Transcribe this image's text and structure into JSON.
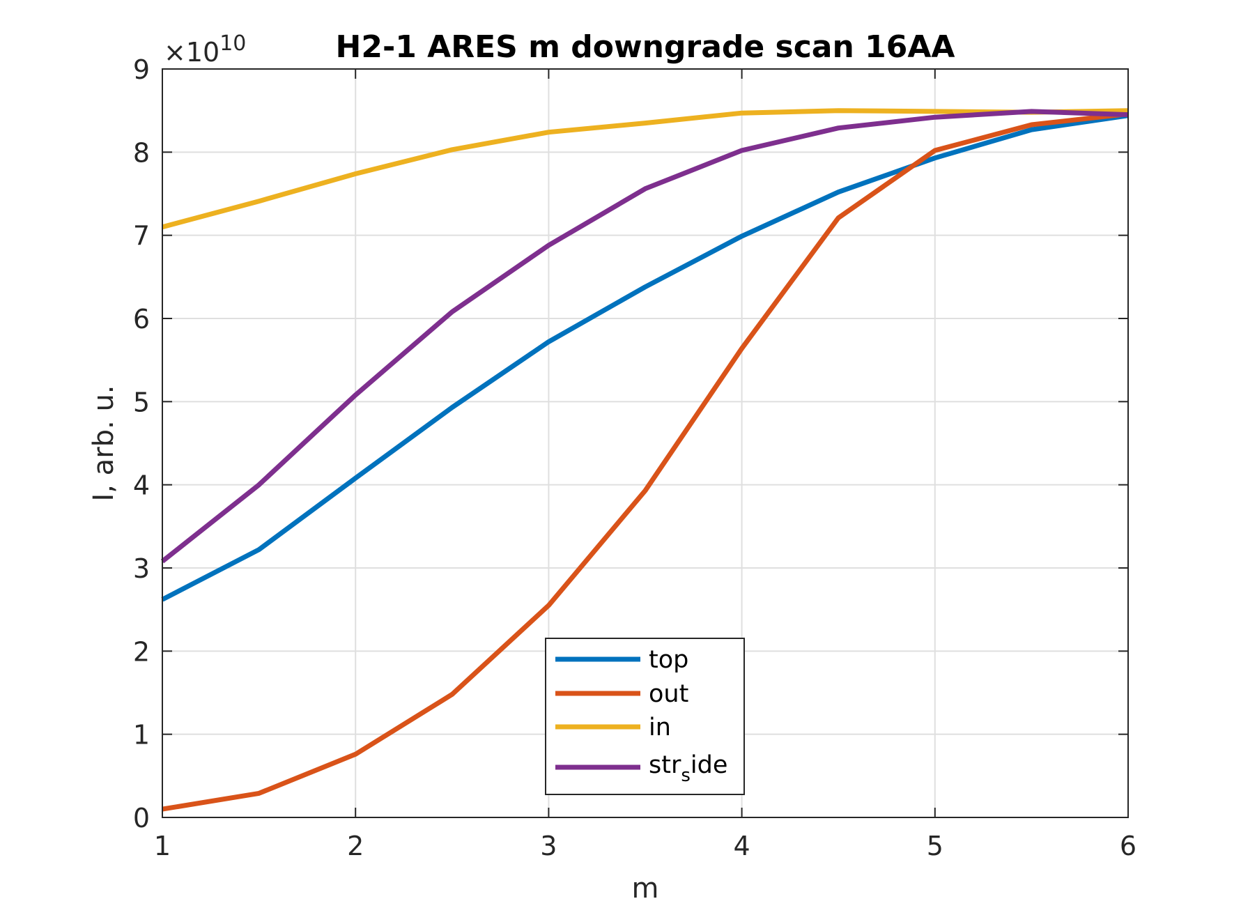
{
  "chart_data": {
    "type": "line",
    "title": "H2-1 ARES m downgrade scan 16AA",
    "xlabel": "m",
    "ylabel": "I, arb. u.",
    "y_exponent_label": "×10",
    "y_exponent_power": "10",
    "xlim": [
      1,
      6
    ],
    "ylim": [
      0,
      9
    ],
    "x_ticks": [
      1,
      2,
      3,
      4,
      5,
      6
    ],
    "y_ticks": [
      0,
      1,
      2,
      3,
      4,
      5,
      6,
      7,
      8,
      9
    ],
    "grid": true,
    "legend_position": "bottom-center",
    "x": [
      1,
      1.5,
      2,
      2.5,
      3,
      3.5,
      4,
      4.5,
      5,
      5.5,
      6
    ],
    "series": [
      {
        "name": "top",
        "color": "#0072BD",
        "values": [
          2.62,
          3.22,
          4.08,
          4.93,
          5.72,
          6.38,
          6.99,
          7.52,
          7.93,
          8.27,
          8.44
        ]
      },
      {
        "name": "out",
        "color": "#D95319",
        "values": [
          0.1,
          0.29,
          0.76,
          1.48,
          2.55,
          3.93,
          5.64,
          7.21,
          8.02,
          8.33,
          8.46
        ]
      },
      {
        "name": "in",
        "color": "#EDB120",
        "values": [
          7.1,
          7.41,
          7.74,
          8.03,
          8.24,
          8.35,
          8.47,
          8.5,
          8.49,
          8.48,
          8.5
        ]
      },
      {
        "name": "str",
        "name_subscript": "s",
        "name_suffix": "ide",
        "color": "#7E2F8E",
        "values": [
          3.08,
          4.0,
          5.08,
          6.08,
          6.88,
          7.56,
          8.02,
          8.29,
          8.42,
          8.49,
          8.45
        ]
      }
    ]
  }
}
